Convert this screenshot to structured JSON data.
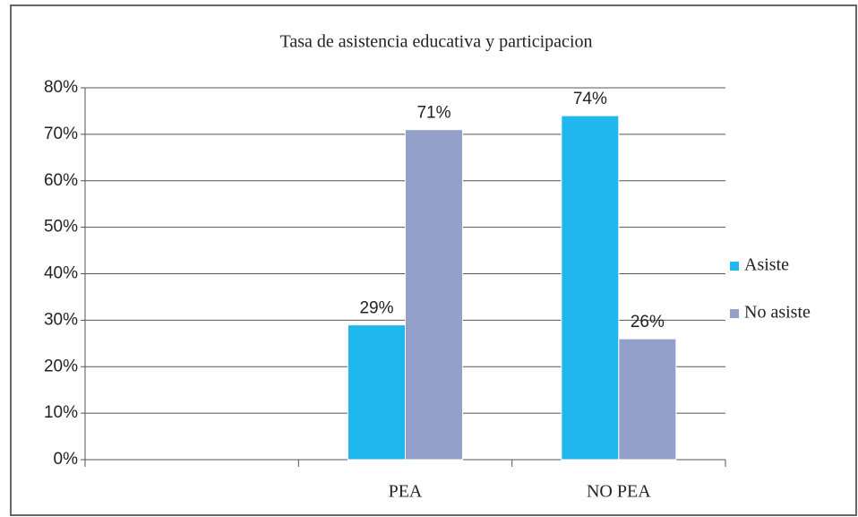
{
  "chart_data": {
    "type": "bar",
    "title": "Tasa de asistencia educativa y participacion",
    "categories": [
      null,
      "PEA",
      "NO PEA"
    ],
    "series": [
      {
        "name": "Asiste",
        "color": "#1fb7ee",
        "values": [
          null,
          29,
          74
        ],
        "value_labels": [
          null,
          "29%",
          "74%"
        ]
      },
      {
        "name": "No asiste",
        "color": "#93a1ca",
        "values": [
          null,
          71,
          26
        ],
        "value_labels": [
          null,
          "71%",
          "26%"
        ]
      }
    ],
    "ylim": [
      0,
      80
    ],
    "yticks": [
      {
        "value": 0,
        "label": "0%"
      },
      {
        "value": 10,
        "label": "10%"
      },
      {
        "value": 20,
        "label": "20%"
      },
      {
        "value": 30,
        "label": "30%"
      },
      {
        "value": 40,
        "label": "40%"
      },
      {
        "value": 50,
        "label": "50%"
      },
      {
        "value": 60,
        "label": "60%"
      },
      {
        "value": 70,
        "label": "70%"
      },
      {
        "value": 80,
        "label": "80%"
      }
    ],
    "grid": true,
    "legend": "right"
  }
}
